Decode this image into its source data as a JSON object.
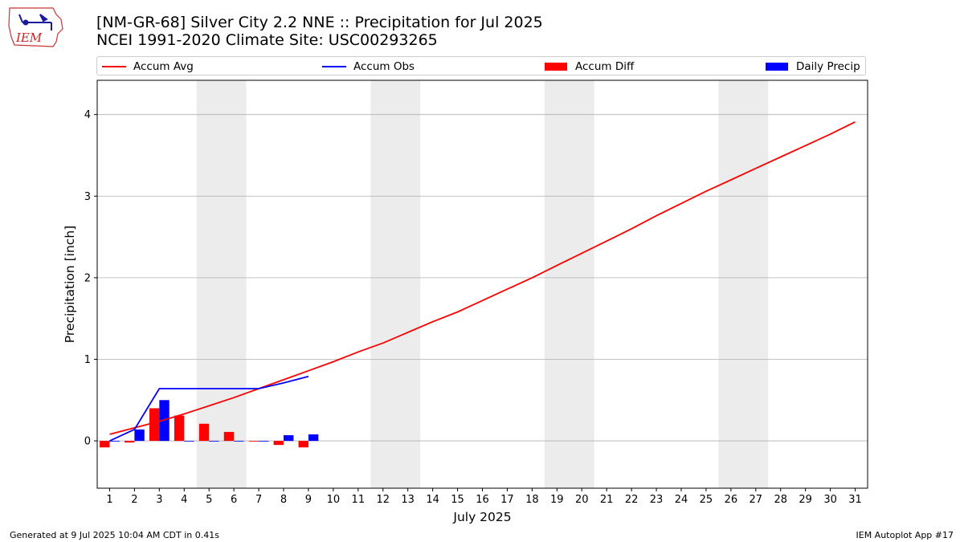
{
  "header": {
    "title_line1": "[NM-GR-68] Silver City 2.2 NNE :: Precipitation for Jul 2025",
    "title_line2": "NCEI 1991-2020 Climate Site: USC00293265"
  },
  "logo": {
    "text": "IEM",
    "icon": "iem-iowa-logo"
  },
  "legend": [
    {
      "label": "Accum Avg",
      "kind": "line",
      "color": "#ff0000"
    },
    {
      "label": "Accum Obs",
      "kind": "line",
      "color": "#0000ff"
    },
    {
      "label": "Accum Diff",
      "kind": "patch",
      "color": "#ff0000"
    },
    {
      "label": "Daily Precip",
      "kind": "patch",
      "color": "#0000ff"
    }
  ],
  "footer": {
    "left": "Generated at 9 Jul 2025 10:04 AM CDT in 0.41s",
    "right": "IEM Autoplot App #17"
  },
  "chart_data": {
    "type": "bar",
    "xlabel": "July 2025",
    "ylabel": "Precipitation [inch]",
    "xlim": [
      0.5,
      31.5
    ],
    "ylim": [
      -0.58,
      4.42
    ],
    "y_ticks": [
      0,
      1,
      2,
      3,
      4
    ],
    "x_ticks": [
      1,
      2,
      3,
      4,
      5,
      6,
      7,
      8,
      9,
      10,
      11,
      12,
      13,
      14,
      15,
      16,
      17,
      18,
      19,
      20,
      21,
      22,
      23,
      24,
      25,
      26,
      27,
      28,
      29,
      30,
      31
    ],
    "weekend_bands": [
      [
        4.5,
        6.5
      ],
      [
        11.5,
        13.5
      ],
      [
        18.5,
        20.5
      ],
      [
        25.5,
        27.5
      ]
    ],
    "grid": "horizontal",
    "series": [
      {
        "name": "Accum Avg",
        "kind": "line",
        "color": "#ff0000",
        "x": [
          1,
          2,
          3,
          4,
          5,
          6,
          7,
          8,
          9,
          10,
          11,
          12,
          13,
          14,
          15,
          16,
          17,
          18,
          19,
          20,
          21,
          22,
          23,
          24,
          25,
          26,
          27,
          28,
          29,
          30,
          31
        ],
        "values": [
          0.08,
          0.16,
          0.24,
          0.33,
          0.43,
          0.53,
          0.64,
          0.75,
          0.86,
          0.97,
          1.09,
          1.2,
          1.33,
          1.46,
          1.58,
          1.72,
          1.86,
          2.0,
          2.15,
          2.3,
          2.45,
          2.6,
          2.76,
          2.91,
          3.06,
          3.2,
          3.34,
          3.48,
          3.62,
          3.76,
          3.91
        ]
      },
      {
        "name": "Accum Obs",
        "kind": "line",
        "color": "#0000ff",
        "x": [
          1,
          2,
          3,
          4,
          5,
          6,
          7,
          8,
          9
        ],
        "values": [
          0.0,
          0.14,
          0.64,
          0.64,
          0.64,
          0.64,
          0.64,
          0.71,
          0.79
        ]
      },
      {
        "name": "Accum Diff",
        "kind": "bar",
        "color": "#ff0000",
        "x": [
          1,
          2,
          3,
          4,
          5,
          6,
          7,
          8,
          9
        ],
        "values": [
          -0.08,
          -0.02,
          0.4,
          0.31,
          0.21,
          0.11,
          0.0,
          -0.05,
          -0.08
        ]
      },
      {
        "name": "Daily Precip",
        "kind": "bar",
        "color": "#0000ff",
        "x": [
          1,
          2,
          3,
          4,
          5,
          6,
          7,
          8,
          9
        ],
        "values": [
          0.0,
          0.14,
          0.5,
          0.0,
          0.0,
          0.0,
          0.0,
          0.07,
          0.08
        ]
      }
    ]
  }
}
